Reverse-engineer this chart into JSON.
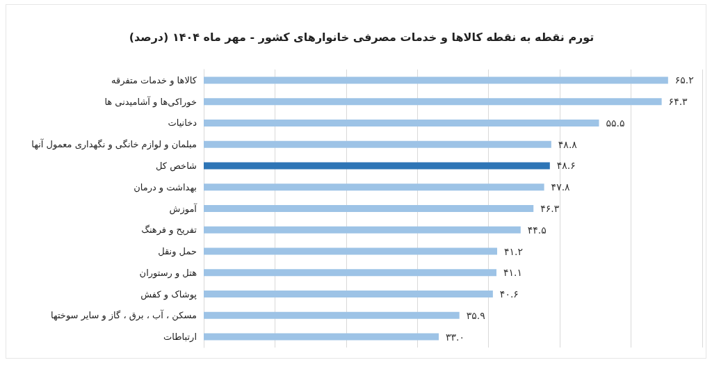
{
  "chart_data": {
    "type": "bar",
    "orientation": "horizontal",
    "title": "تورم نقطه به نقطه کالاها و خدمات مصرفی خانوارهای کشور - مهر ماه ۱۴۰۴ (درصد)",
    "categories": [
      "کالاها و خدمات متفرقه",
      "خوراکی‌ها و آشامیدنی ها",
      "دخانیات",
      "مبلمان و لوازم خانگی و نگهداری معمول آنها",
      "شاخص کل",
      "بهداشت و درمان",
      "آموزش",
      "تفریح و فرهنگ",
      "حمل ونقل",
      "هتل و رستوران",
      "پوشاک و کفش",
      "مسکن ، آب ، برق ، گاز و سایر سوختها",
      "ارتباطات"
    ],
    "values": [
      65.2,
      64.3,
      55.5,
      48.8,
      48.6,
      47.8,
      46.3,
      44.5,
      41.2,
      41.1,
      40.6,
      35.9,
      33.0
    ],
    "colors": [
      "#9dc3e6",
      "#9dc3e6",
      "#9dc3e6",
      "#9dc3e6",
      "#2e75b6",
      "#9dc3e6",
      "#9dc3e6",
      "#9dc3e6",
      "#9dc3e6",
      "#9dc3e6",
      "#9dc3e6",
      "#9dc3e6",
      "#9dc3e6"
    ],
    "value_labels": [
      "۶۵.۲",
      "۶۴.۳",
      "۵۵.۵",
      "۴۸.۸",
      "۴۸.۶",
      "۴۷.۸",
      "۴۶.۳",
      "۴۴.۵",
      "۴۱.۲",
      "۴۱.۱",
      "۴۰.۶",
      "۳۵.۹",
      "۳۳.۰"
    ],
    "xlim": [
      0,
      70
    ],
    "xticks": [
      {
        "value": 0,
        "label": null
      },
      {
        "value": 10,
        "label": null
      },
      {
        "value": 20,
        "label": null
      },
      {
        "value": 30,
        "label": null
      },
      {
        "value": 40,
        "label": null
      },
      {
        "value": 50,
        "label": null
      },
      {
        "value": 60,
        "label": null
      },
      {
        "value": 70,
        "label": null
      }
    ],
    "grid": "x",
    "tick_labels": "y"
  }
}
